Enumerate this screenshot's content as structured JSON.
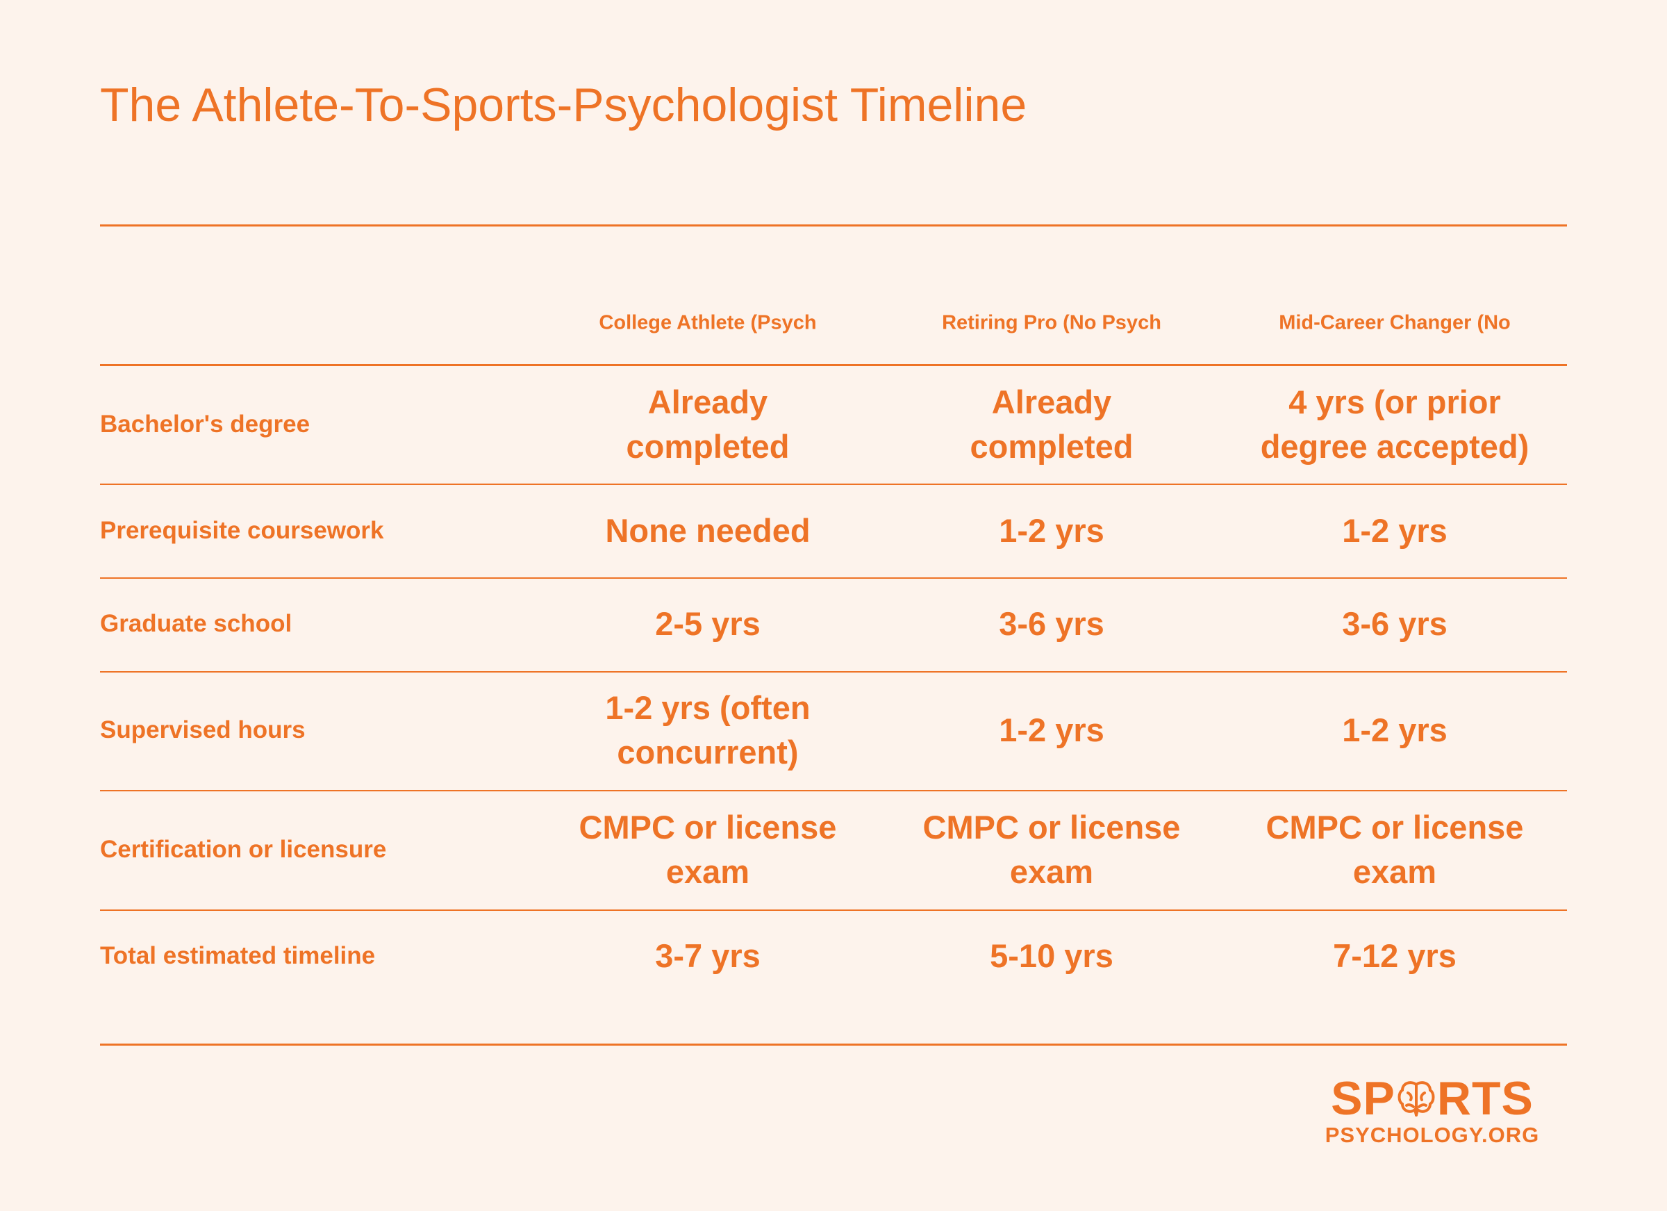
{
  "title": "The Athlete-To-Sports-Psychologist Timeline",
  "table": {
    "columns": [
      "College Athlete (Psych",
      "Retiring Pro (No Psych",
      "Mid-Career Changer (No"
    ],
    "rows": [
      [
        "Bachelor's degree",
        "Already completed",
        "Already completed",
        "4 yrs (or prior degree accepted)"
      ],
      [
        "Prerequisite coursework",
        "None needed",
        "1-2 yrs",
        "1-2 yrs"
      ],
      [
        "Graduate school",
        "2-5 yrs",
        "3-6 yrs",
        "3-6 yrs"
      ],
      [
        "Supervised hours",
        "1-2 yrs (often concurrent)",
        "1-2 yrs",
        "1-2 yrs"
      ],
      [
        "Certification or licensure",
        "CMPC or license exam",
        "CMPC or license exam",
        "CMPC or license exam"
      ],
      [
        "Total estimated timeline",
        "3-7 yrs",
        "5-10 yrs",
        "7-12 yrs"
      ]
    ]
  },
  "logo": {
    "name_start": "SP",
    "name_end": "RTS",
    "domain": "PSYCHOLOGY.ORG"
  }
}
